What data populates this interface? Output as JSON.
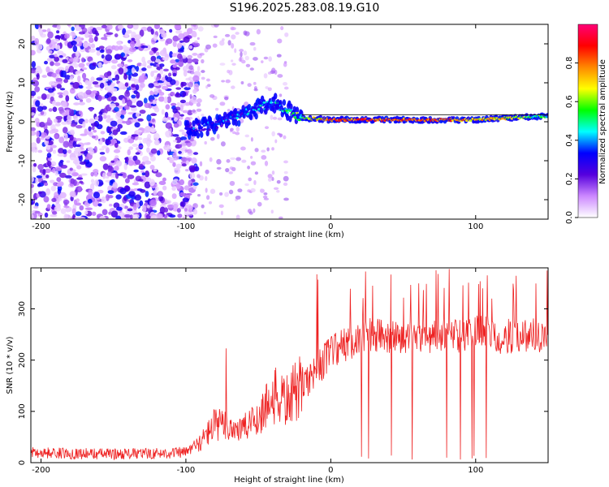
{
  "figure": {
    "title": "S196.2025.283.08.19.G10"
  },
  "chart_data": [
    {
      "type": "heatmap",
      "panel": "top",
      "xlabel": "Height of straight line (km)",
      "ylabel": "Frequency (Hz)",
      "xlim": [
        -207,
        150
      ],
      "ylim": [
        -25,
        25
      ],
      "xticks": [
        -200,
        -100,
        0,
        100
      ],
      "yticks": [
        -20,
        -10,
        0,
        10,
        20
      ],
      "colorbar": {
        "label": "Normalized spectral amplitude",
        "range": [
          0,
          1
        ],
        "ticks": [
          0.0,
          0.2,
          0.4,
          0.6,
          0.8
        ],
        "colors": [
          "#ffffff",
          "#cc88ff",
          "#5500dd",
          "#0000ff",
          "#00ffff",
          "#00ff00",
          "#ffff00",
          "#ff8800",
          "#ff0000",
          "#ff0077"
        ]
      },
      "ridge": {
        "description_x": [
          -100,
          -80,
          -60,
          -40,
          -20,
          0,
          50,
          100,
          150
        ],
        "frequency_hz": [
          -2,
          -1,
          2,
          5,
          1,
          0.5,
          0.5,
          0.5,
          1.5
        ],
        "amplitude": [
          0.3,
          0.3,
          0.35,
          0.4,
          0.55,
          0.8,
          0.85,
          0.75,
          0.5
        ]
      },
      "noise_region": {
        "x_range": [
          -207,
          -100
        ],
        "amplitude": 0.2
      }
    },
    {
      "type": "line",
      "panel": "bottom",
      "xlabel": "Height of straight line (km)",
      "ylabel": "SNR (10 * v/v)",
      "xlim": [
        -207,
        150
      ],
      "ylim": [
        0,
        380
      ],
      "xticks": [
        -200,
        -100,
        0,
        100
      ],
      "yticks": [
        0,
        100,
        200,
        300
      ],
      "color": "#ee2222",
      "series": [
        {
          "x": [
            -207,
            -180,
            -150,
            -120,
            -100,
            -90,
            -80,
            -70,
            -60,
            -50,
            -40,
            -30,
            -20,
            -10,
            0,
            10,
            20,
            30,
            40,
            50,
            60,
            70,
            80,
            90,
            100,
            110,
            120,
            130,
            140,
            150
          ],
          "values": [
            20,
            18,
            17,
            18,
            20,
            40,
            75,
            70,
            65,
            90,
            130,
            120,
            150,
            180,
            215,
            230,
            245,
            250,
            245,
            240,
            250,
            245,
            250,
            245,
            255,
            250,
            245,
            250,
            250,
            250
          ]
        }
      ]
    }
  ]
}
